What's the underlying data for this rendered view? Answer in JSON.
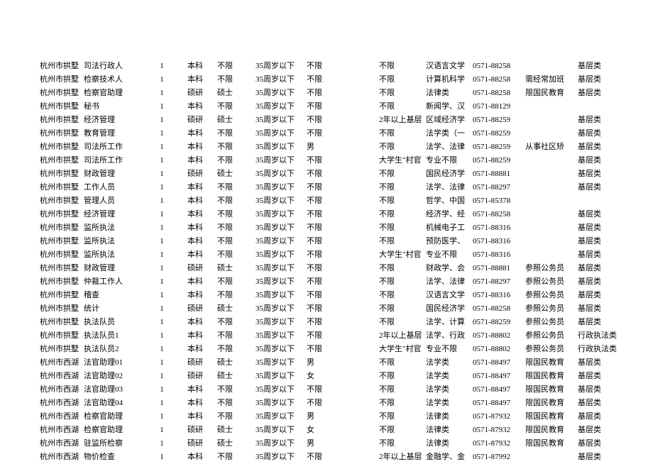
{
  "columns": [
    "c0",
    "c1",
    "c2",
    "c3",
    "c4",
    "c5",
    "c6",
    "c7",
    "c8",
    "c9",
    "c10",
    "c11",
    "c12"
  ],
  "rows": [
    [
      "杭州市拱墅",
      "司法行政人",
      "1",
      "本科",
      "不限",
      "35周岁以下",
      "不限",
      "",
      "不限",
      "汉语言文学",
      "0571-88258",
      "",
      "基层类"
    ],
    [
      "杭州市拱墅",
      "检察技术人",
      "1",
      "本科",
      "不限",
      "35周岁以下",
      "不限",
      "",
      "不限",
      "计算机科学",
      "0571-88258",
      "需经常加班",
      "基层类"
    ],
    [
      "杭州市拱墅",
      "检察官助理",
      "1",
      "硕研",
      "硕士",
      "35周岁以下",
      "不限",
      "",
      "不限",
      "法律类",
      "0571-88258",
      "限国民教育",
      "基层类"
    ],
    [
      "杭州市拱墅",
      "秘书",
      "1",
      "本科",
      "不限",
      "35周岁以下",
      "不限",
      "",
      "不限",
      "新闻学、汉",
      "0571-88129",
      "",
      ""
    ],
    [
      "杭州市拱墅",
      "经济管理",
      "1",
      "硕研",
      "硕士",
      "35周岁以下",
      "不限",
      "",
      "2年以上基层",
      "区域经济学",
      "0571-88259",
      "",
      "基层类"
    ],
    [
      "杭州市拱墅",
      "教育管理",
      "1",
      "本科",
      "不限",
      "35周岁以下",
      "不限",
      "",
      "不限",
      "法学类（一",
      "0571-88259",
      "",
      "基层类"
    ],
    [
      "杭州市拱墅",
      "司法所工作",
      "1",
      "本科",
      "不限",
      "35周岁以下",
      "男",
      "",
      "不限",
      "法学、法律",
      "0571-88259",
      "从事社区矫",
      "基层类"
    ],
    [
      "杭州市拱墅",
      "司法所工作",
      "1",
      "本科",
      "不限",
      "35周岁以下",
      "不限",
      "",
      "大学生\"村官",
      "专业不限",
      "0571-88259",
      "",
      "基层类"
    ],
    [
      "杭州市拱墅",
      "财政管理",
      "1",
      "硕研",
      "硕士",
      "35周岁以下",
      "不限",
      "",
      "不限",
      "国民经济学",
      "0571-88881",
      "",
      "基层类"
    ],
    [
      "杭州市拱墅",
      "工作人员",
      "1",
      "本科",
      "不限",
      "35周岁以下",
      "不限",
      "",
      "不限",
      "法学、法律",
      "0571-88297",
      "",
      "基层类"
    ],
    [
      "杭州市拱墅",
      "管理人员",
      "1",
      "本科",
      "不限",
      "35周岁以下",
      "不限",
      "",
      "不限",
      "哲学、中国",
      "0571-85378",
      "",
      ""
    ],
    [
      "杭州市拱墅",
      "经济管理",
      "1",
      "本科",
      "不限",
      "35周岁以下",
      "不限",
      "",
      "不限",
      "经济学、经",
      "0571-88258",
      "",
      "基层类"
    ],
    [
      "杭州市拱墅",
      "监所执法",
      "1",
      "本科",
      "不限",
      "35周岁以下",
      "不限",
      "",
      "不限",
      "机械电子工",
      "0571-88316",
      "",
      "基层类"
    ],
    [
      "杭州市拱墅",
      "监所执法",
      "1",
      "本科",
      "不限",
      "35周岁以下",
      "不限",
      "",
      "不限",
      "预防医学、",
      "0571-88316",
      "",
      "基层类"
    ],
    [
      "杭州市拱墅",
      "监所执法",
      "1",
      "本科",
      "不限",
      "35周岁以下",
      "不限",
      "",
      "大学生\"村官",
      "专业不限",
      "0571-88316",
      "",
      "基层类"
    ],
    [
      "杭州市拱墅",
      "财政管理",
      "1",
      "硕研",
      "硕士",
      "35周岁以下",
      "不限",
      "",
      "不限",
      "财政学、会",
      "0571-88881",
      "参照公务员",
      "基层类"
    ],
    [
      "杭州市拱墅",
      "仲裁工作人",
      "1",
      "本科",
      "不限",
      "35周岁以下",
      "不限",
      "",
      "不限",
      "法学、法律",
      "0571-88297",
      "参照公务员",
      "基层类"
    ],
    [
      "杭州市拱墅",
      "稽查",
      "1",
      "本科",
      "不限",
      "35周岁以下",
      "不限",
      "",
      "不限",
      "汉语言文学",
      "0571-88316",
      "参照公务员",
      "基层类"
    ],
    [
      "杭州市拱墅",
      "统计",
      "1",
      "硕研",
      "硕士",
      "35周岁以下",
      "不限",
      "",
      "不限",
      "国民经济学",
      "0571-88258",
      "参照公务员",
      "基层类"
    ],
    [
      "杭州市拱墅",
      "执法队员",
      "1",
      "本科",
      "不限",
      "35周岁以下",
      "不限",
      "",
      "不限",
      "法学、计算",
      "0571-88259",
      "参照公务员",
      "基层类"
    ],
    [
      "杭州市拱墅",
      "执法队员1",
      "1",
      "本科",
      "不限",
      "35周岁以下",
      "不限",
      "",
      "2年以上基层",
      "法学、行政",
      "0571-88802",
      "参照公务员",
      "行政执法类"
    ],
    [
      "杭州市拱墅",
      "执法队员2",
      "1",
      "本科",
      "不限",
      "35周岁以下",
      "不限",
      "",
      "大学生\"村官",
      "专业不限",
      "0571-88802",
      "参照公务员",
      "行政执法类"
    ],
    [
      "杭州市西湖",
      "法官助理01",
      "1",
      "硕研",
      "硕士",
      "35周岁以下",
      "男",
      "",
      "不限",
      "法学类",
      "0571-88497",
      "限国民教育",
      "基层类"
    ],
    [
      "杭州市西湖",
      "法官助理02",
      "1",
      "硕研",
      "硕士",
      "35周岁以下",
      "女",
      "",
      "不限",
      "法学类",
      "0571-88497",
      "限国民教育",
      "基层类"
    ],
    [
      "杭州市西湖",
      "法官助理03",
      "1",
      "本科",
      "不限",
      "35周岁以下",
      "不限",
      "",
      "不限",
      "法学类",
      "0571-88497",
      "限国民教育",
      "基层类"
    ],
    [
      "杭州市西湖",
      "法官助理04",
      "1",
      "本科",
      "不限",
      "35周岁以下",
      "不限",
      "",
      "不限",
      "法学类",
      "0571-88497",
      "限国民教育",
      "基层类"
    ],
    [
      "杭州市西湖",
      "检察官助理",
      "1",
      "本科",
      "不限",
      "35周岁以下",
      "男",
      "",
      "不限",
      "法律类",
      "0571-87932",
      "限国民教育",
      "基层类"
    ],
    [
      "杭州市西湖",
      "检察官助理",
      "1",
      "硕研",
      "硕士",
      "35周岁以下",
      "女",
      "",
      "不限",
      "法律类",
      "0571-87932",
      "限国民教育",
      "基层类"
    ],
    [
      "杭州市西湖",
      "驻监所检察",
      "1",
      "硕研",
      "硕士",
      "35周岁以下",
      "男",
      "",
      "不限",
      "法律类",
      "0571-87932",
      "限国民教育",
      "基层类"
    ],
    [
      "杭州市西湖",
      "物价检查",
      "1",
      "本科",
      "不限",
      "35周岁以下",
      "不限",
      "",
      "2年以上基层",
      "金融学、金",
      "0571-87992",
      "",
      "基层类"
    ]
  ]
}
